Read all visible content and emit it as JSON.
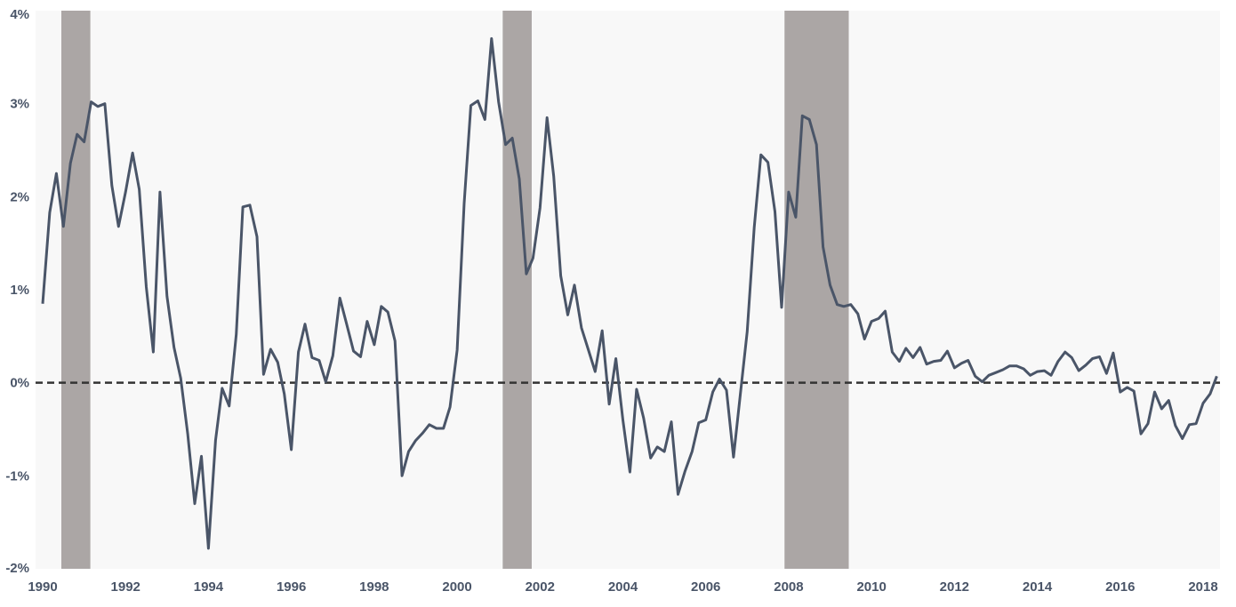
{
  "chart_data": {
    "type": "line",
    "title": "",
    "xlabel": "",
    "ylabel": "",
    "xlim": [
      1990,
      2018.2
    ],
    "ylim": [
      -2,
      4
    ],
    "x_ticks": [
      "1990",
      "1992",
      "1994",
      "1996",
      "1998",
      "2000",
      "2002",
      "2004",
      "2006",
      "2008",
      "2010",
      "2012",
      "2014",
      "2016",
      "2018"
    ],
    "y_ticks": [
      "4%",
      "3%",
      "2%",
      "1%",
      "0%",
      "-1%",
      "-2%"
    ],
    "y_tick_values": [
      4,
      3,
      2,
      1,
      0,
      -1,
      -2
    ],
    "reference_line": 0,
    "recessions": [
      [
        1990.45,
        1991.15
      ],
      [
        2001.1,
        2001.8
      ],
      [
        2007.9,
        2009.45
      ]
    ],
    "colors": {
      "line": "#4a5568",
      "recession": "#aba6a5",
      "plot_bg": "#f8f8f8",
      "reference": "#333333",
      "tick_text": "#4a5568"
    },
    "series": [
      {
        "values": [
          [
            1990.0,
            0.85
          ],
          [
            1990.17,
            1.83
          ],
          [
            1990.33,
            2.25
          ],
          [
            1990.5,
            1.68
          ],
          [
            1990.67,
            2.36
          ],
          [
            1990.83,
            2.67
          ],
          [
            1991.0,
            2.59
          ],
          [
            1991.17,
            3.02
          ],
          [
            1991.33,
            2.97
          ],
          [
            1991.5,
            3.0
          ],
          [
            1991.67,
            2.12
          ],
          [
            1991.83,
            1.68
          ],
          [
            1992.0,
            2.05
          ],
          [
            1992.17,
            2.47
          ],
          [
            1992.33,
            2.08
          ],
          [
            1992.5,
            1.03
          ],
          [
            1992.67,
            0.33
          ],
          [
            1992.83,
            2.05
          ],
          [
            1993.0,
            0.93
          ],
          [
            1993.17,
            0.38
          ],
          [
            1993.33,
            0.05
          ],
          [
            1993.5,
            -0.55
          ],
          [
            1993.67,
            -1.3
          ],
          [
            1993.83,
            -0.79
          ],
          [
            1994.0,
            -1.78
          ],
          [
            1994.17,
            -0.62
          ],
          [
            1994.33,
            -0.06
          ],
          [
            1994.5,
            -0.25
          ],
          [
            1994.67,
            0.52
          ],
          [
            1994.83,
            1.89
          ],
          [
            1995.0,
            1.91
          ],
          [
            1995.17,
            1.57
          ],
          [
            1995.33,
            0.09
          ],
          [
            1995.5,
            0.36
          ],
          [
            1995.67,
            0.22
          ],
          [
            1995.83,
            -0.12
          ],
          [
            1996.0,
            -0.72
          ],
          [
            1996.17,
            0.33
          ],
          [
            1996.33,
            0.63
          ],
          [
            1996.5,
            0.27
          ],
          [
            1996.67,
            0.24
          ],
          [
            1996.83,
            0.01
          ],
          [
            1997.0,
            0.29
          ],
          [
            1997.17,
            0.91
          ],
          [
            1997.33,
            0.64
          ],
          [
            1997.5,
            0.34
          ],
          [
            1997.67,
            0.28
          ],
          [
            1997.83,
            0.66
          ],
          [
            1998.0,
            0.41
          ],
          [
            1998.17,
            0.82
          ],
          [
            1998.33,
            0.76
          ],
          [
            1998.5,
            0.45
          ],
          [
            1998.67,
            -1.0
          ],
          [
            1998.83,
            -0.74
          ],
          [
            1999.0,
            -0.62
          ],
          [
            1999.17,
            -0.54
          ],
          [
            1999.33,
            -0.45
          ],
          [
            1999.5,
            -0.49
          ],
          [
            1999.67,
            -0.49
          ],
          [
            1999.83,
            -0.26
          ],
          [
            2000.0,
            0.35
          ],
          [
            2000.17,
            1.93
          ],
          [
            2000.33,
            2.98
          ],
          [
            2000.5,
            3.03
          ],
          [
            2000.67,
            2.83
          ],
          [
            2000.83,
            3.7
          ],
          [
            2001.0,
            3.02
          ],
          [
            2001.17,
            2.56
          ],
          [
            2001.33,
            2.63
          ],
          [
            2001.5,
            2.19
          ],
          [
            2001.67,
            1.17
          ],
          [
            2001.83,
            1.34
          ],
          [
            2002.0,
            1.88
          ],
          [
            2002.17,
            2.85
          ],
          [
            2002.33,
            2.22
          ],
          [
            2002.5,
            1.15
          ],
          [
            2002.67,
            0.73
          ],
          [
            2002.83,
            1.05
          ],
          [
            2003.0,
            0.59
          ],
          [
            2003.17,
            0.35
          ],
          [
            2003.33,
            0.12
          ],
          [
            2003.5,
            0.56
          ],
          [
            2003.67,
            -0.23
          ],
          [
            2003.83,
            0.26
          ],
          [
            2004.0,
            -0.4
          ],
          [
            2004.17,
            -0.96
          ],
          [
            2004.33,
            -0.07
          ],
          [
            2004.5,
            -0.38
          ],
          [
            2004.67,
            -0.81
          ],
          [
            2004.83,
            -0.69
          ],
          [
            2005.0,
            -0.74
          ],
          [
            2005.17,
            -0.42
          ],
          [
            2005.33,
            -1.2
          ],
          [
            2005.5,
            -0.95
          ],
          [
            2005.67,
            -0.74
          ],
          [
            2005.83,
            -0.43
          ],
          [
            2006.0,
            -0.4
          ],
          [
            2006.17,
            -0.1
          ],
          [
            2006.33,
            0.04
          ],
          [
            2006.5,
            -0.08
          ],
          [
            2006.67,
            -0.8
          ],
          [
            2006.83,
            -0.14
          ],
          [
            2007.0,
            0.55
          ],
          [
            2007.17,
            1.67
          ],
          [
            2007.33,
            2.45
          ],
          [
            2007.5,
            2.37
          ],
          [
            2007.67,
            1.84
          ],
          [
            2007.83,
            0.81
          ],
          [
            2008.0,
            2.05
          ],
          [
            2008.17,
            1.78
          ],
          [
            2008.33,
            2.87
          ],
          [
            2008.5,
            2.83
          ],
          [
            2008.67,
            2.56
          ],
          [
            2008.83,
            1.46
          ],
          [
            2009.0,
            1.05
          ],
          [
            2009.17,
            0.84
          ],
          [
            2009.33,
            0.82
          ],
          [
            2009.5,
            0.84
          ],
          [
            2009.67,
            0.74
          ],
          [
            2009.83,
            0.47
          ],
          [
            2010.0,
            0.66
          ],
          [
            2010.17,
            0.69
          ],
          [
            2010.33,
            0.77
          ],
          [
            2010.5,
            0.33
          ],
          [
            2010.67,
            0.23
          ],
          [
            2010.83,
            0.37
          ],
          [
            2011.0,
            0.27
          ],
          [
            2011.17,
            0.38
          ],
          [
            2011.33,
            0.2
          ],
          [
            2011.5,
            0.23
          ],
          [
            2011.67,
            0.24
          ],
          [
            2011.83,
            0.34
          ],
          [
            2012.0,
            0.16
          ],
          [
            2012.17,
            0.21
          ],
          [
            2012.33,
            0.24
          ],
          [
            2012.5,
            0.07
          ],
          [
            2012.67,
            0.01
          ],
          [
            2012.83,
            0.08
          ],
          [
            2013.0,
            0.11
          ],
          [
            2013.17,
            0.14
          ],
          [
            2013.33,
            0.18
          ],
          [
            2013.5,
            0.18
          ],
          [
            2013.67,
            0.15
          ],
          [
            2013.83,
            0.08
          ],
          [
            2014.0,
            0.12
          ],
          [
            2014.17,
            0.13
          ],
          [
            2014.33,
            0.08
          ],
          [
            2014.5,
            0.23
          ],
          [
            2014.67,
            0.33
          ],
          [
            2014.83,
            0.27
          ],
          [
            2015.0,
            0.13
          ],
          [
            2015.17,
            0.19
          ],
          [
            2015.33,
            0.26
          ],
          [
            2015.5,
            0.28
          ],
          [
            2015.67,
            0.1
          ],
          [
            2015.83,
            0.32
          ],
          [
            2016.0,
            -0.1
          ],
          [
            2016.17,
            -0.05
          ],
          [
            2016.33,
            -0.09
          ],
          [
            2016.5,
            -0.55
          ],
          [
            2016.67,
            -0.44
          ],
          [
            2016.83,
            -0.1
          ],
          [
            2017.0,
            -0.28
          ],
          [
            2017.17,
            -0.19
          ],
          [
            2017.33,
            -0.46
          ],
          [
            2017.5,
            -0.6
          ],
          [
            2017.67,
            -0.45
          ],
          [
            2017.83,
            -0.44
          ],
          [
            2018.0,
            -0.22
          ],
          [
            2018.17,
            -0.12
          ],
          [
            2018.33,
            0.07
          ]
        ]
      }
    ]
  }
}
